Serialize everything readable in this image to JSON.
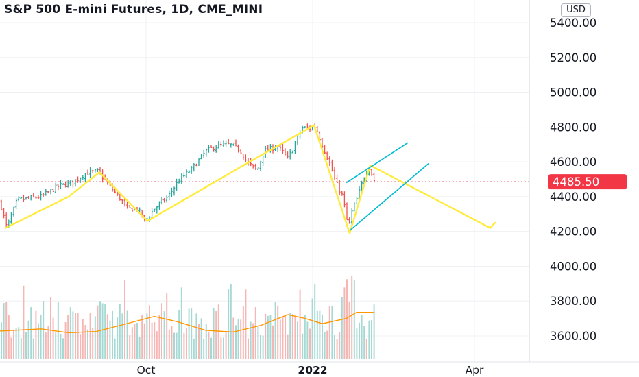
{
  "header": {
    "title": "S&P 500 E-mini Futures, 1D, CME_MINI",
    "currency": "USD"
  },
  "colors": {
    "up": "#26a69a",
    "down": "#ef5350",
    "annotation": "#ffeb3b",
    "channel": "#00bcd4",
    "volume_ma": "#ff9800",
    "price_line": "#f23645",
    "grid": "#eef0f3"
  },
  "chart_data": {
    "type": "candlestick",
    "y_axis": {
      "range": [
        3450,
        5500
      ],
      "ticks": [
        5400,
        5200,
        5000,
        4800,
        4600,
        4400,
        4200,
        4000,
        3800,
        3600
      ],
      "tick_labels": [
        "5400.00",
        "5200.00",
        "5000.00",
        "4800.00",
        "4600.00",
        "4400.00",
        "4200.00",
        "4000.00",
        "3800.00",
        "3600.00"
      ]
    },
    "x_axis": {
      "labels": [
        "Oct",
        "2022",
        "Apr"
      ]
    },
    "last_price": 4485.5,
    "last_price_label": "4485.50",
    "price_path": [
      [
        0,
        4370
      ],
      [
        10,
        4220
      ],
      [
        25,
        4380
      ],
      [
        60,
        4400
      ],
      [
        85,
        4460
      ],
      [
        105,
        4480
      ],
      [
        125,
        4535
      ],
      [
        143,
        4545
      ],
      [
        160,
        4460
      ],
      [
        175,
        4390
      ],
      [
        185,
        4330
      ],
      [
        200,
        4330
      ],
      [
        212,
        4260
      ],
      [
        225,
        4330
      ],
      [
        245,
        4400
      ],
      [
        260,
        4490
      ],
      [
        280,
        4560
      ],
      [
        300,
        4660
      ],
      [
        315,
        4690
      ],
      [
        335,
        4700
      ],
      [
        350,
        4670
      ],
      [
        360,
        4600
      ],
      [
        375,
        4550
      ],
      [
        385,
        4660
      ],
      [
        405,
        4690
      ],
      [
        420,
        4620
      ],
      [
        430,
        4700
      ],
      [
        440,
        4795
      ],
      [
        450,
        4790
      ],
      [
        460,
        4805
      ],
      [
        470,
        4700
      ],
      [
        480,
        4600
      ],
      [
        490,
        4480
      ],
      [
        500,
        4400
      ],
      [
        508,
        4220
      ],
      [
        512,
        4300
      ],
      [
        520,
        4380
      ],
      [
        530,
        4500
      ],
      [
        538,
        4575
      ],
      [
        546,
        4490
      ]
    ],
    "annotation_lines": [
      [
        [
          8,
          4220
        ],
        [
          100,
          4400
        ],
        [
          145,
          4540
        ],
        [
          215,
          4260
        ],
        [
          355,
          4580
        ],
        [
          458,
          4810
        ],
        [
          510,
          4190
        ],
        [
          540,
          4580
        ],
        [
          715,
          4220
        ],
        [
          722,
          4250
        ]
      ]
    ],
    "channel_lines": [
      [
        [
          505,
          4480
        ],
        [
          595,
          4710
        ]
      ],
      [
        [
          510,
          4205
        ],
        [
          625,
          4590
        ]
      ]
    ],
    "volume": {
      "ma_path": [
        [
          0,
          3628
        ],
        [
          60,
          3640
        ],
        [
          100,
          3618
        ],
        [
          140,
          3625
        ],
        [
          180,
          3665
        ],
        [
          225,
          3712
        ],
        [
          260,
          3680
        ],
        [
          300,
          3632
        ],
        [
          340,
          3622
        ],
        [
          380,
          3660
        ],
        [
          420,
          3722
        ],
        [
          445,
          3700
        ],
        [
          470,
          3670
        ],
        [
          505,
          3700
        ],
        [
          520,
          3735
        ],
        [
          545,
          3735
        ]
      ]
    }
  }
}
